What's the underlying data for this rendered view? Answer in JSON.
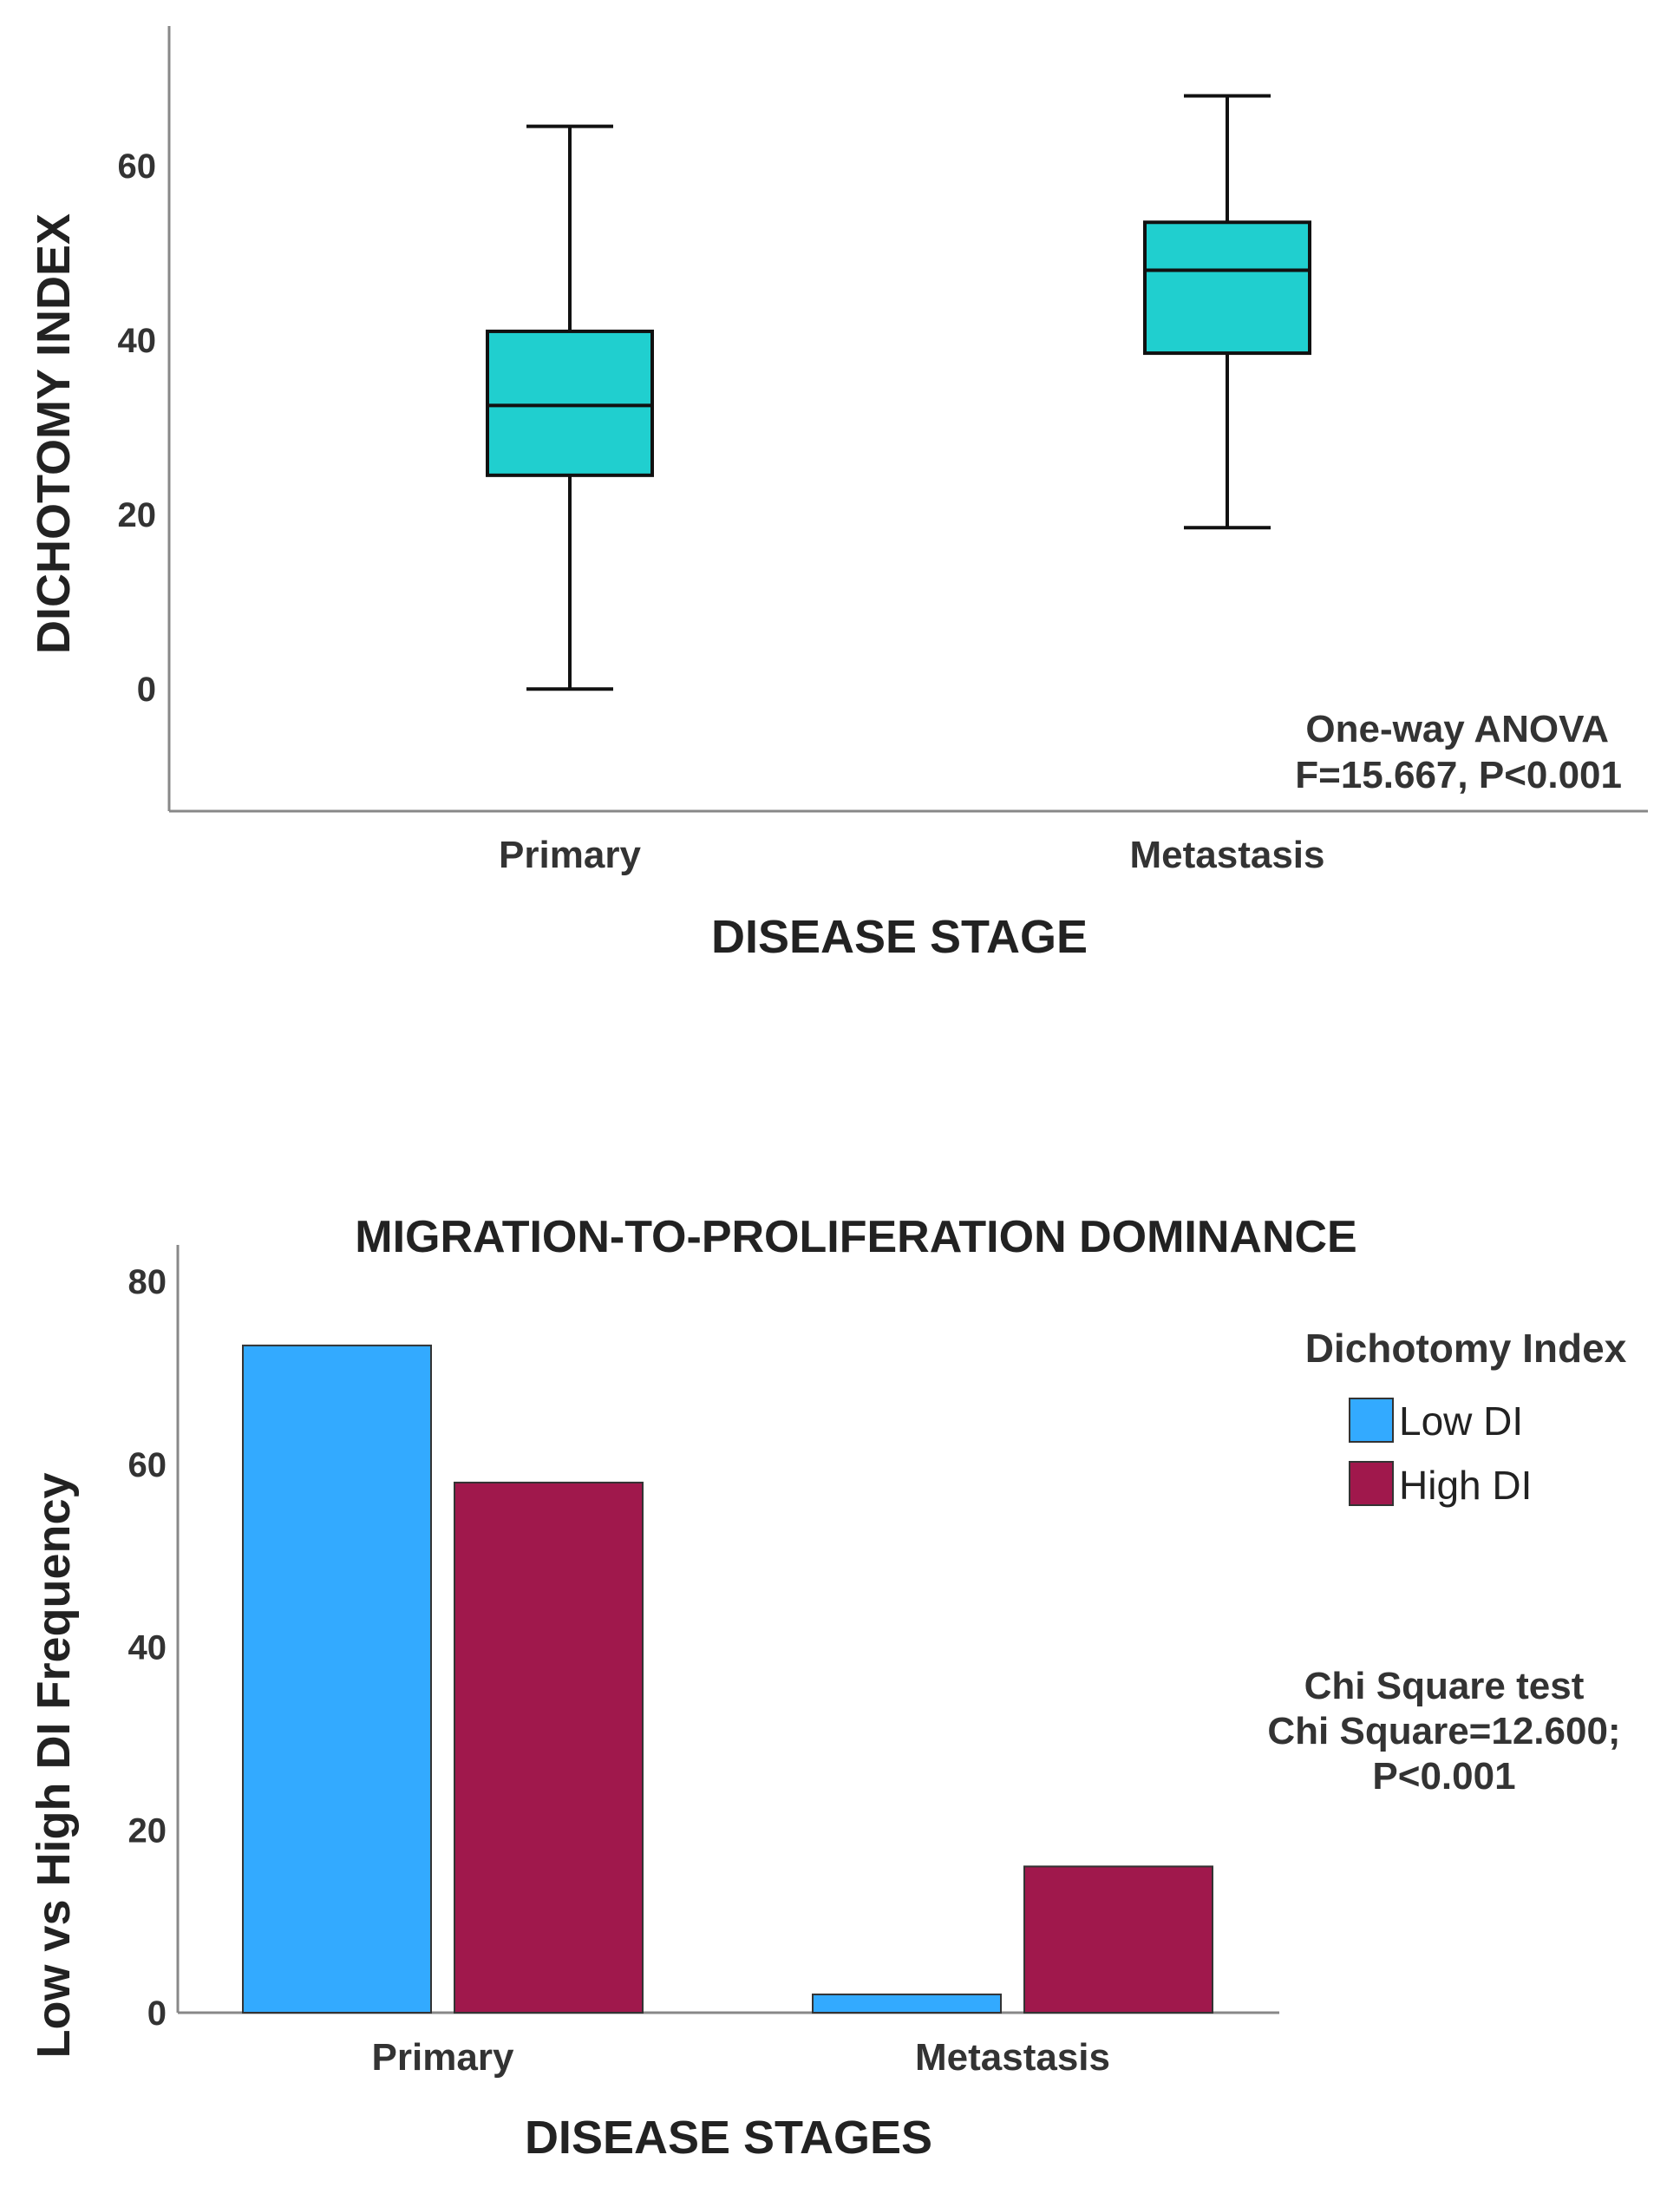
{
  "chart_data": [
    {
      "type": "box",
      "title": "",
      "xlabel": "DISEASE STAGE",
      "ylabel": "DICHOTOMY INDEX",
      "ylim": [
        -14,
        76
      ],
      "yticks": [
        0,
        20,
        40,
        60
      ],
      "categories": [
        "Primary",
        "Metastasis"
      ],
      "boxes": [
        {
          "category": "Primary",
          "min": 0,
          "q1": 24.5,
          "median": 32.5,
          "q3": 41,
          "max": 64.5
        },
        {
          "category": "Metastasis",
          "min": 18.5,
          "q1": 38.5,
          "median": 48,
          "q3": 53.5,
          "max": 68
        }
      ],
      "color": "#20cfcf",
      "annotation": [
        "One-way ANOVA",
        "F=15.667, P<0.001"
      ]
    },
    {
      "type": "bar",
      "title": "MIGRATION-TO-PROLIFERATION DOMINANCE",
      "xlabel": "DISEASE STAGES",
      "ylabel": "Low vs High DI Frequency",
      "ylim": [
        0,
        84
      ],
      "yticks": [
        0,
        20,
        40,
        60,
        80
      ],
      "categories": [
        "Primary",
        "Metastasis"
      ],
      "series": [
        {
          "name": "Low DI",
          "values": [
            73,
            2
          ],
          "color": "#33aaff"
        },
        {
          "name": "High DI",
          "values": [
            58,
            16
          ],
          "color": "#a0184c"
        }
      ],
      "legend_title": "Dichotomy Index",
      "legend_position": "right",
      "annotation": [
        "Chi Square test",
        "Chi Square=12.600;",
        "P<0.001"
      ]
    }
  ]
}
